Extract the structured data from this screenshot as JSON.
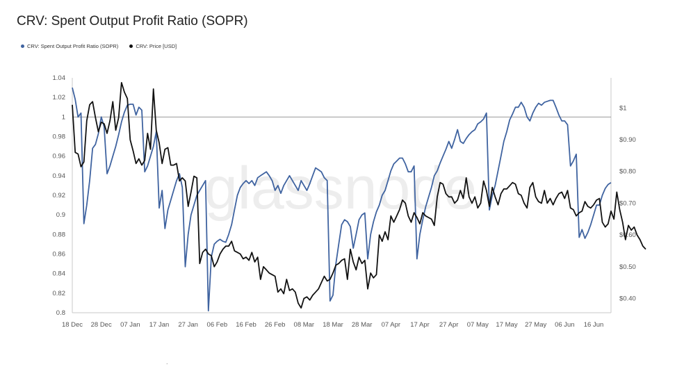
{
  "title": "CRV: Spent Output Profit Ratio (SOPR)",
  "watermark": "glassnode",
  "stray_mark": ".",
  "colors": {
    "sopr": "#3f63a0",
    "price": "#111111"
  },
  "chart_data": {
    "type": "line",
    "title": "CRV: Spent Output Profit Ratio (SOPR)",
    "x_ticks": [
      "18 Dec",
      "28 Dec",
      "07 Jan",
      "17 Jan",
      "27 Jan",
      "06 Feb",
      "16 Feb",
      "26 Feb",
      "08 Mar",
      "18 Mar",
      "28 Mar",
      "07 Apr",
      "17 Apr",
      "27 Apr",
      "07 May",
      "17 May",
      "27 May",
      "06 Jun",
      "16 Jun"
    ],
    "y_left": {
      "ticks": [
        "0.8",
        "0.82",
        "0.84",
        "0.86",
        "0.88",
        "0.9",
        "0.92",
        "0.94",
        "0.96",
        "0.98",
        "1",
        "1.02",
        "1.04"
      ],
      "ylim": [
        0.8,
        1.04
      ],
      "reference_line": 1
    },
    "y_right": {
      "ticks": [
        "$0.40",
        "$0.50",
        "$0.60",
        "$0.70",
        "$0.80",
        "$0.90",
        "$1"
      ],
      "tick_values": [
        0.4,
        0.5,
        0.6,
        0.7,
        0.8,
        0.9,
        1.0
      ],
      "ylim": [
        0.355,
        1.095
      ]
    },
    "legend_placement": "top-left",
    "grid": false,
    "series": [
      {
        "name": "CRV: Spent Output Profit Ratio (SOPR)",
        "axis": "left",
        "values": [
          1.03,
          1.018,
          1.0,
          1.004,
          0.891,
          0.91,
          0.935,
          0.968,
          0.972,
          0.983,
          1.0,
          0.99,
          0.942,
          0.95,
          0.96,
          0.97,
          0.982,
          0.995,
          1.005,
          1.012,
          1.013,
          1.013,
          1.002,
          1.01,
          1.007,
          0.944,
          0.95,
          0.96,
          0.97,
          0.985,
          0.907,
          0.925,
          0.886,
          0.905,
          0.915,
          0.925,
          0.935,
          0.942,
          0.928,
          0.847,
          0.88,
          0.9,
          0.91,
          0.92,
          0.925,
          0.93,
          0.935,
          0.802,
          0.857,
          0.87,
          0.873,
          0.875,
          0.873,
          0.872,
          0.88,
          0.89,
          0.905,
          0.92,
          0.928,
          0.932,
          0.935,
          0.932,
          0.935,
          0.93,
          0.938,
          0.94,
          0.942,
          0.944,
          0.94,
          0.935,
          0.925,
          0.93,
          0.922,
          0.93,
          0.935,
          0.94,
          0.935,
          0.93,
          0.925,
          0.935,
          0.93,
          0.925,
          0.932,
          0.94,
          0.948,
          0.946,
          0.944,
          0.938,
          0.935,
          0.812,
          0.818,
          0.85,
          0.87,
          0.89,
          0.895,
          0.893,
          0.888,
          0.866,
          0.88,
          0.895,
          0.9,
          0.902,
          0.855,
          0.88,
          0.893,
          0.903,
          0.91,
          0.92,
          0.925,
          0.935,
          0.945,
          0.952,
          0.955,
          0.958,
          0.958,
          0.952,
          0.944,
          0.944,
          0.95,
          0.855,
          0.88,
          0.895,
          0.908,
          0.918,
          0.928,
          0.94,
          0.945,
          0.953,
          0.96,
          0.967,
          0.975,
          0.968,
          0.977,
          0.987,
          0.975,
          0.973,
          0.978,
          0.982,
          0.985,
          0.987,
          0.993,
          0.995,
          0.998,
          1.004,
          0.905,
          0.92,
          0.93,
          0.945,
          0.96,
          0.975,
          0.985,
          0.997,
          1.003,
          1.01,
          1.01,
          1.015,
          1.01,
          1.0,
          0.996,
          1.004,
          1.01,
          1.014,
          1.012,
          1.015,
          1.016,
          1.017,
          1.017,
          1.01,
          1.002,
          0.996,
          0.996,
          0.992,
          0.95,
          0.955,
          0.962,
          0.877,
          0.885,
          0.876,
          0.882,
          0.89,
          0.9,
          0.91,
          0.91,
          0.92,
          0.927,
          0.931,
          0.933
        ]
      },
      {
        "name": "CRV: Price [USD]",
        "axis": "right",
        "values": [
          1.01,
          0.86,
          0.855,
          0.815,
          0.83,
          0.96,
          1.01,
          1.02,
          0.97,
          0.925,
          0.955,
          0.95,
          0.92,
          0.96,
          1.02,
          0.93,
          0.97,
          1.08,
          1.05,
          1.03,
          0.9,
          0.865,
          0.825,
          0.84,
          0.82,
          0.835,
          0.92,
          0.87,
          1.06,
          0.93,
          0.89,
          0.825,
          0.87,
          0.875,
          0.82,
          0.82,
          0.825,
          0.77,
          0.78,
          0.77,
          0.69,
          0.735,
          0.785,
          0.78,
          0.51,
          0.545,
          0.555,
          0.54,
          0.535,
          0.5,
          0.515,
          0.54,
          0.555,
          0.565,
          0.565,
          0.58,
          0.55,
          0.545,
          0.54,
          0.525,
          0.53,
          0.52,
          0.545,
          0.515,
          0.53,
          0.46,
          0.5,
          0.49,
          0.48,
          0.475,
          0.47,
          0.42,
          0.43,
          0.415,
          0.46,
          0.425,
          0.43,
          0.42,
          0.385,
          0.37,
          0.4,
          0.405,
          0.395,
          0.41,
          0.42,
          0.43,
          0.45,
          0.47,
          0.455,
          0.46,
          0.48,
          0.505,
          0.51,
          0.52,
          0.525,
          0.46,
          0.555,
          0.515,
          0.49,
          0.53,
          0.51,
          0.52,
          0.43,
          0.48,
          0.465,
          0.475,
          0.6,
          0.58,
          0.61,
          0.585,
          0.66,
          0.64,
          0.66,
          0.68,
          0.71,
          0.7,
          0.66,
          0.64,
          0.67,
          0.655,
          0.635,
          0.67,
          0.66,
          0.655,
          0.65,
          0.63,
          0.72,
          0.765,
          0.76,
          0.73,
          0.72,
          0.72,
          0.7,
          0.71,
          0.74,
          0.715,
          0.78,
          0.72,
          0.7,
          0.72,
          0.685,
          0.7,
          0.77,
          0.74,
          0.69,
          0.75,
          0.72,
          0.695,
          0.73,
          0.745,
          0.745,
          0.755,
          0.765,
          0.76,
          0.73,
          0.725,
          0.7,
          0.685,
          0.75,
          0.765,
          0.72,
          0.705,
          0.7,
          0.74,
          0.7,
          0.715,
          0.695,
          0.715,
          0.73,
          0.735,
          0.715,
          0.74,
          0.685,
          0.68,
          0.66,
          0.67,
          0.675,
          0.705,
          0.69,
          0.685,
          0.695,
          0.71,
          0.715,
          0.64,
          0.625,
          0.635,
          0.675,
          0.65,
          0.735,
          0.68,
          0.64,
          0.585,
          0.63,
          0.615,
          0.625,
          0.6,
          0.585,
          0.565,
          0.555
        ]
      }
    ]
  }
}
